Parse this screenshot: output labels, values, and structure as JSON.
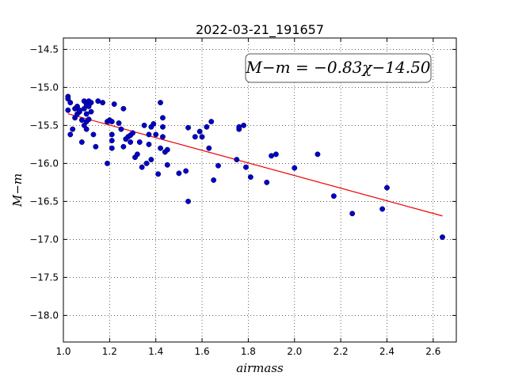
{
  "chart_data": {
    "type": "scatter",
    "title": "2022-03-21_191657",
    "xlabel": "airmass",
    "ylabel": "M−m",
    "xlim": [
      1.0,
      2.7
    ],
    "ylim": [
      -18.35,
      -14.35
    ],
    "y_inverted": true,
    "grid": true,
    "grid_style": "dotted",
    "xticks": [
      1.0,
      1.2,
      1.4,
      1.6,
      1.8,
      2.0,
      2.2,
      2.4,
      2.6
    ],
    "xtick_labels": [
      "1.0",
      "1.2",
      "1.4",
      "1.6",
      "1.8",
      "2.0",
      "2.2",
      "2.4",
      "2.6"
    ],
    "yticks": [
      -14.5,
      -15.0,
      -15.5,
      -16.0,
      -16.5,
      -17.0,
      -17.5,
      -18.0
    ],
    "ytick_labels": [
      "−14.5",
      "−15.0",
      "−15.5",
      "−16.0",
      "−16.5",
      "−17.0",
      "−17.5",
      "−18.0"
    ],
    "annotation": "M−m = −0.83χ−14.50",
    "annotation_location": "top-right",
    "point_color": "#0000cc",
    "fit_color": "#ee0000",
    "fit_line": {
      "slope": -0.83,
      "intercept": -14.5,
      "x_range": [
        1.02,
        2.64
      ]
    },
    "points": [
      [
        1.02,
        -15.12
      ],
      [
        1.02,
        -15.15
      ],
      [
        1.02,
        -15.3
      ],
      [
        1.03,
        -15.62
      ],
      [
        1.03,
        -15.2
      ],
      [
        1.04,
        -15.55
      ],
      [
        1.05,
        -15.28
      ],
      [
        1.05,
        -15.4
      ],
      [
        1.06,
        -15.25
      ],
      [
        1.06,
        -15.35
      ],
      [
        1.07,
        -15.32
      ],
      [
        1.07,
        -15.3
      ],
      [
        1.08,
        -15.72
      ],
      [
        1.08,
        -15.43
      ],
      [
        1.09,
        -15.18
      ],
      [
        1.09,
        -15.5
      ],
      [
        1.09,
        -15.28
      ],
      [
        1.1,
        -15.55
      ],
      [
        1.1,
        -15.35
      ],
      [
        1.1,
        -15.45
      ],
      [
        1.1,
        -15.23
      ],
      [
        1.11,
        -15.18
      ],
      [
        1.11,
        -15.42
      ],
      [
        1.11,
        -15.25
      ],
      [
        1.12,
        -15.2
      ],
      [
        1.12,
        -15.32
      ],
      [
        1.13,
        -15.62
      ],
      [
        1.14,
        -15.78
      ],
      [
        1.15,
        -15.18
      ],
      [
        1.17,
        -15.2
      ],
      [
        1.19,
        -15.45
      ],
      [
        1.19,
        -16.0
      ],
      [
        1.2,
        -15.43
      ],
      [
        1.21,
        -15.7
      ],
      [
        1.21,
        -15.62
      ],
      [
        1.21,
        -15.8
      ],
      [
        1.21,
        -15.45
      ],
      [
        1.22,
        -15.22
      ],
      [
        1.24,
        -15.47
      ],
      [
        1.25,
        -15.55
      ],
      [
        1.26,
        -15.28
      ],
      [
        1.26,
        -15.78
      ],
      [
        1.27,
        -15.68
      ],
      [
        1.28,
        -15.65
      ],
      [
        1.29,
        -15.63
      ],
      [
        1.29,
        -15.72
      ],
      [
        1.3,
        -15.6
      ],
      [
        1.31,
        -15.92
      ],
      [
        1.32,
        -15.88
      ],
      [
        1.33,
        -15.72
      ],
      [
        1.34,
        -16.05
      ],
      [
        1.35,
        -15.5
      ],
      [
        1.36,
        -16.0
      ],
      [
        1.37,
        -15.75
      ],
      [
        1.37,
        -15.62
      ],
      [
        1.38,
        -15.52
      ],
      [
        1.38,
        -15.95
      ],
      [
        1.39,
        -15.48
      ],
      [
        1.4,
        -15.62
      ],
      [
        1.41,
        -16.14
      ],
      [
        1.42,
        -15.2
      ],
      [
        1.42,
        -15.8
      ],
      [
        1.43,
        -15.4
      ],
      [
        1.43,
        -15.65
      ],
      [
        1.43,
        -15.52
      ],
      [
        1.44,
        -15.85
      ],
      [
        1.45,
        -15.82
      ],
      [
        1.45,
        -16.02
      ],
      [
        1.5,
        -16.13
      ],
      [
        1.53,
        -16.1
      ],
      [
        1.54,
        -15.53
      ],
      [
        1.54,
        -16.5
      ],
      [
        1.57,
        -15.65
      ],
      [
        1.59,
        -15.58
      ],
      [
        1.6,
        -15.65
      ],
      [
        1.62,
        -15.52
      ],
      [
        1.63,
        -15.8
      ],
      [
        1.64,
        -15.45
      ],
      [
        1.65,
        -16.22
      ],
      [
        1.67,
        -16.03
      ],
      [
        1.75,
        -15.95
      ],
      [
        1.76,
        -15.55
      ],
      [
        1.76,
        -15.52
      ],
      [
        1.78,
        -15.5
      ],
      [
        1.79,
        -16.05
      ],
      [
        1.81,
        -16.18
      ],
      [
        1.88,
        -16.25
      ],
      [
        1.9,
        -15.9
      ],
      [
        1.92,
        -15.88
      ],
      [
        2.0,
        -16.06
      ],
      [
        2.1,
        -15.88
      ],
      [
        2.17,
        -16.43
      ],
      [
        2.25,
        -16.66
      ],
      [
        2.38,
        -16.6
      ],
      [
        2.4,
        -16.32
      ],
      [
        2.64,
        -16.97
      ]
    ]
  }
}
